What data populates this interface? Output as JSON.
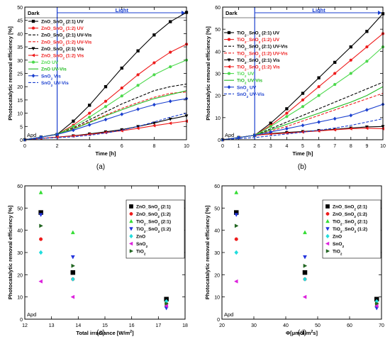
{
  "chart_data": [
    {
      "type": "line",
      "panel_label": "(a)",
      "xlabel": "Time [h]",
      "ylabel": "Photocatalytic removal efficiency [%]",
      "xlim": [
        0,
        10
      ],
      "ylim": [
        0,
        50
      ],
      "xticks": [
        0,
        2,
        4,
        6,
        8,
        10
      ],
      "yticks": [
        0,
        5,
        10,
        15,
        20,
        25,
        30,
        35,
        40,
        45,
        50
      ],
      "grid": false,
      "legend_placement": "top-left",
      "phase_labels": [
        "Dark",
        "Light"
      ],
      "light_on_at": 2,
      "corner_label": "Apd",
      "x": [
        0,
        1,
        2,
        3,
        4,
        5,
        6,
        7,
        8,
        9,
        10
      ],
      "series": [
        {
          "name": "ZnO_SnO₂ (2:1) UV",
          "color": "#000000",
          "marker": "square",
          "dash": "solid",
          "values": [
            0,
            1,
            2,
            7,
            13,
            20,
            27,
            33.5,
            39.5,
            44.5,
            48
          ]
        },
        {
          "name": "ZnO_SnO₂ (1:2) UV",
          "color": "#ee1c1c",
          "marker": "circle",
          "dash": "solid",
          "values": [
            0,
            1,
            2,
            5.5,
            10,
            14.5,
            19.5,
            24.5,
            29,
            33,
            36
          ]
        },
        {
          "name": "ZnO_SnO₂ (2:1) UV-Vis",
          "color": "#000000",
          "marker": "none",
          "dash": "dash",
          "values": [
            0,
            1,
            2.2,
            4.5,
            7.5,
            10.5,
            13.5,
            16,
            18.5,
            20,
            21
          ]
        },
        {
          "name": "ZnO_SnO₂ (1:2) UV-Vis",
          "color": "#ee1c1c",
          "marker": "none",
          "dash": "dash",
          "values": [
            0,
            1,
            2.1,
            4.2,
            6.8,
            9.3,
            11.8,
            14,
            16,
            17.5,
            18
          ]
        },
        {
          "name": "ZnO_SnO₂ (2:1) Vis",
          "color": "#000000",
          "marker": "triangle-down",
          "dash": "solid",
          "values": [
            0,
            0.5,
            1,
            1.5,
            2.2,
            3,
            3.8,
            5,
            6.3,
            7.8,
            9
          ]
        },
        {
          "name": "ZnO_SnO₂ (1:2) Vis",
          "color": "#ee1c1c",
          "marker": "triangle-left",
          "dash": "solid",
          "values": [
            0,
            0.5,
            1,
            1.4,
            2,
            2.7,
            3.4,
            4.3,
            5.3,
            6.2,
            7
          ]
        },
        {
          "name": "ZnO UV",
          "color": "#4cd94c",
          "marker": "circle",
          "dash": "solid",
          "values": [
            0,
            1,
            2,
            5,
            8.5,
            12.5,
            16.5,
            20.5,
            24.5,
            27.5,
            30
          ]
        },
        {
          "name": "ZnO UV-Vis",
          "color": "#22bb22",
          "marker": "none",
          "dash": "solid",
          "values": [
            0,
            1,
            2.1,
            4,
            6.5,
            9,
            11.3,
            13.5,
            15.5,
            17,
            18.5
          ]
        },
        {
          "name": "SnO₂ Vis",
          "color": "#1a3fcf",
          "marker": "diamond",
          "dash": "solid",
          "values": [
            0,
            1,
            2,
            3.6,
            5.6,
            7.6,
            9.6,
            11.5,
            13.2,
            14.5,
            15.5
          ]
        },
        {
          "name": "SnO₂ UV-Vis",
          "color": "#1a3fcf",
          "marker": "none",
          "dash": "dash",
          "values": [
            0,
            0.5,
            0.8,
            1.1,
            1.7,
            2.5,
            3.6,
            5,
            6.7,
            8.5,
            10
          ]
        }
      ]
    },
    {
      "type": "line",
      "panel_label": "(b)",
      "xlabel": "Time [h]",
      "ylabel": "Photocatalytic removal efficiency [%]",
      "xlim": [
        0,
        10
      ],
      "ylim": [
        0,
        60
      ],
      "xticks": [
        0,
        1,
        2,
        3,
        4,
        5,
        6,
        7,
        8,
        9,
        10
      ],
      "yticks": [
        0,
        10,
        20,
        30,
        40,
        50,
        60
      ],
      "grid": false,
      "legend_placement": "top-left",
      "phase_labels": [
        "Dark",
        "Light"
      ],
      "light_on_at": 2,
      "corner_label": "Apd",
      "x": [
        0,
        1,
        2,
        3,
        4,
        5,
        6,
        7,
        8,
        9,
        10
      ],
      "series": [
        {
          "name": "TiO₂_SnO₂ (2:1) UV",
          "color": "#000000",
          "marker": "square",
          "dash": "solid",
          "values": [
            0,
            1,
            2,
            7.5,
            14,
            21,
            28,
            35,
            42,
            49,
            57
          ]
        },
        {
          "name": "TiO₂_SnO₂ (1:2) UV",
          "color": "#ee1c1c",
          "marker": "circle",
          "dash": "solid",
          "values": [
            0,
            1,
            2,
            6.5,
            12,
            18,
            24,
            30,
            36,
            42,
            48
          ]
        },
        {
          "name": "TiO₂_SnO₂ (2:1) UV-Vis",
          "color": "#000000",
          "marker": "none",
          "dash": "dash",
          "values": [
            0,
            1,
            2,
            5,
            8,
            11,
            14,
            17,
            20,
            23,
            26
          ]
        },
        {
          "name": "TiO₂_SnO₂ (1:2) UV-Vis",
          "color": "#ee1c1c",
          "marker": "none",
          "dash": "dash",
          "values": [
            0,
            1,
            2,
            4,
            6,
            8.5,
            11,
            13.5,
            16,
            18.5,
            21
          ]
        },
        {
          "name": "TiO₂_SnO₂ (2:1) Vis",
          "color": "#000000",
          "marker": "triangle-down",
          "dash": "solid",
          "values": [
            0,
            1,
            2,
            2.8,
            3.3,
            3.7,
            4.2,
            4.7,
            5.3,
            5.8,
            6
          ]
        },
        {
          "name": "TiO₂_SnO₂ (1:2) Vis",
          "color": "#ee1c1c",
          "marker": "triangle-left",
          "dash": "solid",
          "values": [
            0,
            1,
            2,
            2.6,
            3,
            3.5,
            4,
            4.5,
            5,
            5.2,
            5
          ]
        },
        {
          "name": "TiO₂ UV",
          "color": "#4cd94c",
          "marker": "circle",
          "dash": "solid",
          "values": [
            0,
            1,
            2,
            6,
            10.5,
            15,
            20,
            25,
            30,
            35.5,
            42
          ]
        },
        {
          "name": "TiO₂ UV-Vis",
          "color": "#22bb22",
          "marker": "none",
          "dash": "solid",
          "values": [
            0,
            1,
            2,
            4.5,
            7,
            9.5,
            12,
            14.5,
            17,
            20,
            24
          ]
        },
        {
          "name": "SnO₂ UV",
          "color": "#1a3fcf",
          "marker": "diamond",
          "dash": "solid",
          "values": [
            0,
            1,
            2,
            3.5,
            5,
            6.5,
            8,
            9.5,
            11,
            13.5,
            16
          ]
        },
        {
          "name": "SnO₂ UV-Vis",
          "color": "#1a3fcf",
          "marker": "none",
          "dash": "dash",
          "values": [
            0,
            0.5,
            1,
            1.8,
            2.6,
            3.4,
            4.3,
            5.3,
            6.5,
            8,
            9.5
          ]
        }
      ]
    },
    {
      "type": "scatter",
      "panel_label": "(c)",
      "xlabel": "Total irradiance [W/m²]",
      "ylabel": "Photocatalytic removal efficiency [%]",
      "xlim": [
        12,
        18
      ],
      "ylim": [
        0,
        60
      ],
      "xticks": [
        12,
        13,
        14,
        15,
        16,
        17,
        18
      ],
      "yticks": [
        0,
        10,
        20,
        30,
        40,
        50,
        60
      ],
      "grid": false,
      "legend_placement": "top-right",
      "corner_label": "Apd",
      "series": [
        {
          "name": "ZnO_SnO₂ (2:1)",
          "color": "#000000",
          "marker": "square",
          "x": [
            12.6,
            13.8,
            17.3
          ],
          "y": [
            48,
            21,
            9
          ]
        },
        {
          "name": "ZnO_SnO₂ (1:2)",
          "color": "#ee1c1c",
          "marker": "circle",
          "x": [
            12.6,
            13.8,
            17.3
          ],
          "y": [
            36,
            18,
            7
          ]
        },
        {
          "name": "TiO₂_SnO₂ (2:1)",
          "color": "#33dd33",
          "marker": "triangle-up",
          "x": [
            12.6,
            13.8,
            17.3
          ],
          "y": [
            57,
            39,
            6
          ]
        },
        {
          "name": "TiO₂_SnO₂ (1:2)",
          "color": "#2233dd",
          "marker": "triangle-down",
          "x": [
            12.6,
            13.8,
            17.3
          ],
          "y": [
            47,
            28,
            5
          ]
        },
        {
          "name": "ZnO",
          "color": "#22dddd",
          "marker": "diamond",
          "x": [
            12.6,
            13.8,
            17.3
          ],
          "y": [
            30,
            18,
            8
          ]
        },
        {
          "name": "SnO₂",
          "color": "#dd22dd",
          "marker": "triangle-left",
          "x": [
            12.6,
            13.8,
            17.3
          ],
          "y": [
            17,
            10,
            6
          ]
        },
        {
          "name": "TiO₂",
          "color": "#226622",
          "marker": "triangle-right",
          "x": [
            12.6,
            13.8,
            17.3
          ],
          "y": [
            42,
            24,
            7
          ]
        }
      ]
    },
    {
      "type": "scatter",
      "panel_label": "(d)",
      "xlabel": "Φ[μmol/m²s]",
      "ylabel": "Photocatalytic removal efficiency [%]",
      "xlim": [
        20,
        70
      ],
      "ylim": [
        0,
        60
      ],
      "xticks": [
        20,
        30,
        40,
        50,
        60,
        70
      ],
      "yticks": [
        0,
        10,
        20,
        30,
        40,
        50,
        60
      ],
      "grid": false,
      "legend_placement": "top-right",
      "corner_label": "Apd",
      "series": [
        {
          "name": "ZnO_SnO₂ (2:1)",
          "color": "#000000",
          "marker": "square",
          "x": [
            24.5,
            46,
            68.5
          ],
          "y": [
            48,
            21,
            9
          ]
        },
        {
          "name": "ZnO_SnO₂ (1:2)",
          "color": "#ee1c1c",
          "marker": "circle",
          "x": [
            24.5,
            46,
            68.5
          ],
          "y": [
            36,
            18,
            7
          ]
        },
        {
          "name": "TiO₂_SnO₂ (2:1)",
          "color": "#33dd33",
          "marker": "triangle-up",
          "x": [
            24.5,
            46,
            68.5
          ],
          "y": [
            57,
            39,
            6
          ]
        },
        {
          "name": "TiO₂_SnO₂ (1:2)",
          "color": "#2233dd",
          "marker": "triangle-down",
          "x": [
            24.5,
            46,
            68.5
          ],
          "y": [
            47,
            28,
            5
          ]
        },
        {
          "name": "ZnO",
          "color": "#22dddd",
          "marker": "diamond",
          "x": [
            24.5,
            46,
            68.5
          ],
          "y": [
            30,
            18,
            8
          ]
        },
        {
          "name": "SnO₂",
          "color": "#dd22dd",
          "marker": "triangle-left",
          "x": [
            24.5,
            46,
            68.5
          ],
          "y": [
            17,
            10,
            6
          ]
        },
        {
          "name": "TiO₂",
          "color": "#226622",
          "marker": "triangle-right",
          "x": [
            24.5,
            46,
            68.5
          ],
          "y": [
            42,
            24,
            7
          ]
        }
      ]
    }
  ]
}
